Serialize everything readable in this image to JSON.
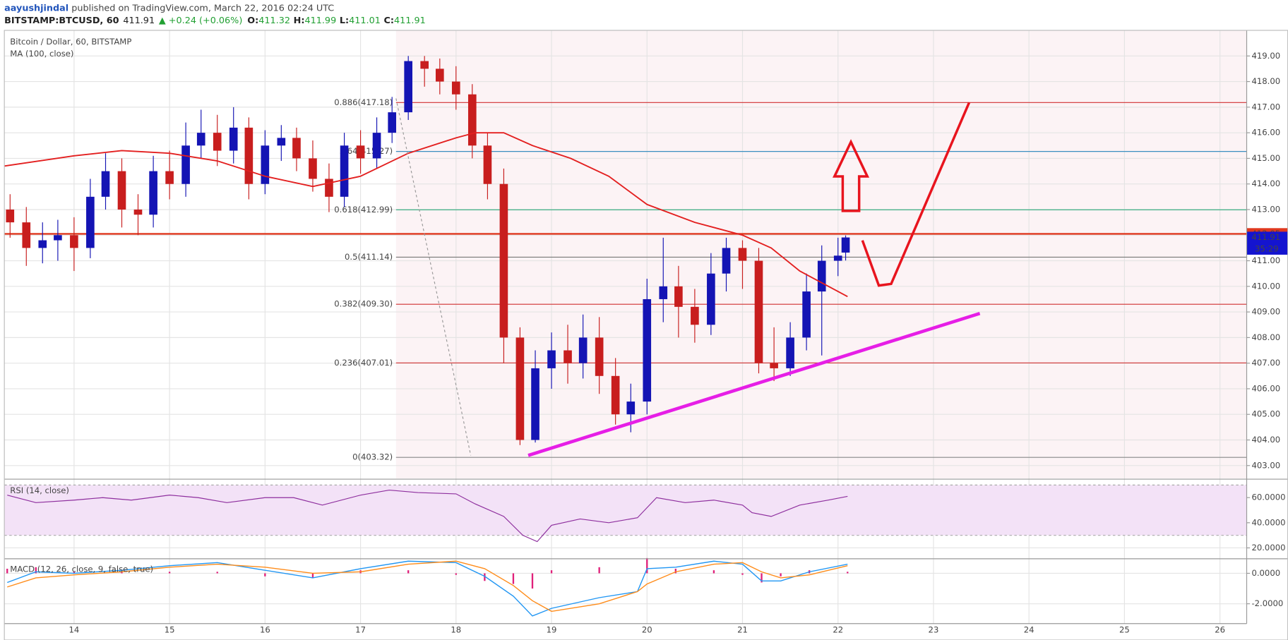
{
  "header": {
    "author": "aayushjindal",
    "published": " published on TradingView.com, March 22, 2016 02:24 UTC",
    "symbol": "BITSTAMP:BTCUSD, 60",
    "last": "411.91",
    "change": "▲ +0.24 (+0.06%)",
    "ohlc": [
      {
        "label": "O:",
        "value": "411.32"
      },
      {
        "label": "H:",
        "value": "411.99"
      },
      {
        "label": "L:",
        "value": "411.01"
      },
      {
        "label": "C:",
        "value": "411.91"
      }
    ]
  },
  "chart_data": [
    {
      "type": "candlestick",
      "title": "Bitcoin / Dollar, 60, BITSTAMP",
      "x": [
        13.33,
        13.5,
        13.67,
        13.83,
        14,
        14.17,
        14.33,
        14.5,
        14.67,
        14.83,
        15,
        15.17,
        15.33,
        15.5,
        15.67,
        15.83,
        16,
        16.17,
        16.33,
        16.5,
        16.67,
        16.83,
        17,
        17.17,
        17.33,
        17.5,
        17.67,
        17.83,
        18,
        18.17,
        18.33,
        18.5,
        18.67,
        18.83,
        19,
        19.17,
        19.33,
        19.5,
        19.67,
        19.83,
        20,
        20.17,
        20.33,
        20.5,
        20.67,
        20.83,
        21,
        21.17,
        21.33,
        21.5,
        21.67,
        21.83,
        22,
        22.08
      ],
      "open": [
        413.0,
        412.5,
        411.5,
        411.8,
        412.0,
        411.5,
        413.5,
        414.5,
        413.0,
        412.8,
        414.5,
        414.0,
        415.5,
        416.0,
        415.3,
        416.2,
        414.0,
        415.5,
        415.8,
        415.0,
        414.2,
        413.5,
        415.5,
        415.0,
        416.0,
        416.8,
        418.8,
        418.5,
        418.0,
        417.5,
        415.5,
        414.0,
        408.0,
        404.0,
        406.8,
        407.5,
        407.0,
        408.0,
        406.5,
        405.0,
        405.5,
        409.5,
        410.0,
        409.2,
        408.5,
        410.5,
        411.5,
        411.0,
        407.0,
        406.8,
        408.0,
        409.8,
        411.0,
        411.32
      ],
      "high": [
        413.6,
        413.1,
        412.5,
        412.6,
        412.7,
        414.2,
        415.2,
        415.0,
        413.6,
        415.1,
        415.3,
        416.4,
        416.9,
        416.7,
        417.0,
        416.6,
        416.1,
        416.3,
        416.2,
        415.7,
        414.8,
        416.0,
        416.1,
        416.6,
        417.4,
        419.0,
        419.0,
        418.9,
        418.6,
        417.9,
        416.0,
        414.6,
        408.4,
        407.5,
        408.2,
        408.5,
        408.9,
        408.8,
        407.2,
        406.2,
        410.3,
        411.9,
        410.8,
        409.9,
        411.3,
        411.9,
        411.8,
        411.5,
        408.4,
        408.6,
        410.5,
        411.6,
        411.9,
        411.99
      ],
      "low": [
        411.9,
        410.8,
        410.9,
        411.0,
        410.6,
        411.1,
        413.0,
        412.3,
        412.0,
        412.3,
        413.4,
        413.5,
        415.0,
        414.7,
        414.8,
        413.4,
        413.6,
        414.9,
        414.5,
        413.7,
        412.9,
        413.1,
        414.4,
        414.6,
        415.6,
        416.5,
        417.8,
        417.5,
        416.9,
        415.0,
        413.4,
        407.0,
        403.8,
        403.9,
        406.0,
        406.2,
        406.4,
        405.8,
        404.6,
        404.3,
        405.0,
        408.6,
        408.0,
        407.8,
        408.1,
        409.8,
        409.9,
        406.6,
        406.3,
        406.5,
        407.5,
        407.3,
        410.4,
        411.01
      ],
      "close": [
        412.5,
        411.5,
        411.8,
        412.0,
        411.5,
        413.5,
        414.5,
        413.0,
        412.8,
        414.5,
        414.0,
        415.5,
        416.0,
        415.3,
        416.2,
        414.0,
        415.5,
        415.8,
        415.0,
        414.2,
        413.5,
        415.5,
        415.0,
        416.0,
        416.8,
        418.8,
        418.5,
        418.0,
        417.5,
        415.5,
        414.0,
        408.0,
        404.0,
        406.8,
        407.5,
        407.0,
        408.0,
        406.5,
        405.0,
        405.5,
        409.5,
        410.0,
        409.2,
        408.5,
        410.5,
        411.5,
        411.0,
        407.0,
        406.8,
        408.0,
        409.8,
        411.0,
        411.2,
        411.91
      ],
      "up_color": "#1414b4",
      "down_color": "#c81e1e",
      "overlay": {
        "name": "MA (100, close)",
        "color": "#e31f1f",
        "x": [
          13.27,
          14,
          14.5,
          15,
          15.5,
          16,
          16.5,
          17,
          17.5,
          18,
          18.2,
          18.5,
          18.8,
          19.2,
          19.6,
          20,
          20.5,
          21,
          21.3,
          21.6,
          22,
          22.1
        ],
        "values": [
          414.7,
          415.1,
          415.3,
          415.2,
          414.9,
          414.3,
          413.9,
          414.3,
          415.2,
          415.8,
          416.0,
          416.0,
          415.5,
          415.0,
          414.3,
          413.2,
          412.5,
          412.0,
          411.5,
          410.6,
          409.8,
          409.6
        ]
      },
      "fib_levels": [
        {
          "label": "0.886(417.18)",
          "value": 417.18,
          "color": "#d03030"
        },
        {
          "label": ".764(415.27)",
          "value": 415.27,
          "color": "#3a8fc0"
        },
        {
          "label": "0.618(412.99)",
          "value": 412.99,
          "color": "#2aa878"
        },
        {
          "label": "0.5(411.14)",
          "value": 411.14,
          "color": "#777777"
        },
        {
          "label": "0.382(409.30)",
          "value": 409.3,
          "color": "#d03030"
        },
        {
          "label": "0.236(407.01)",
          "value": 407.01,
          "color": "#d03030"
        },
        {
          "label": "0(403.32)",
          "value": 403.32,
          "color": "#888888"
        }
      ],
      "price_line": {
        "value": 412.05,
        "color": "#e0381e"
      },
      "last_price": {
        "value": 411.91,
        "timer": "35:29",
        "color": "#1414d0"
      },
      "xlim": [
        13.27,
        26.28
      ],
      "xticks": [
        14,
        15,
        16,
        17,
        18,
        19,
        20,
        21,
        22,
        23,
        24,
        25,
        26
      ],
      "ylim": [
        402.5,
        420
      ],
      "yticks": [
        {
          "value": 403,
          "label": "403.00"
        },
        {
          "value": 404,
          "label": "404.00"
        },
        {
          "value": 405,
          "label": "405.00"
        },
        {
          "value": 406,
          "label": "406.00"
        },
        {
          "value": 407,
          "label": "407.00"
        },
        {
          "value": 408,
          "label": "408.00"
        },
        {
          "value": 409,
          "label": "409.00"
        },
        {
          "value": 410,
          "label": "410.00"
        },
        {
          "value": 411,
          "label": "411.00"
        },
        {
          "value": 412,
          "label": "412.00"
        },
        {
          "value": 413,
          "label": "413.00"
        },
        {
          "value": 414,
          "label": "414.00"
        },
        {
          "value": 415,
          "label": "415.00"
        },
        {
          "value": 416,
          "label": "416.00"
        },
        {
          "value": 417,
          "label": "417.00"
        },
        {
          "value": 418,
          "label": "418.00"
        },
        {
          "value": 419,
          "label": "419.00"
        }
      ],
      "grid": true
    },
    {
      "type": "line",
      "title": "RSI (14, close)",
      "color": "#8e2f9e",
      "x": [
        13.3,
        13.6,
        14,
        14.3,
        14.6,
        15,
        15.3,
        15.6,
        16,
        16.3,
        16.6,
        17,
        17.3,
        17.6,
        18,
        18.2,
        18.5,
        18.7,
        18.85,
        19,
        19.3,
        19.6,
        19.9,
        20.1,
        20.4,
        20.7,
        21,
        21.1,
        21.3,
        21.6,
        21.9,
        22.1
      ],
      "values": [
        62,
        56,
        58,
        60,
        58,
        62,
        60,
        56,
        60,
        60,
        54,
        62,
        66,
        64,
        63,
        55,
        45,
        30,
        25,
        38,
        43,
        40,
        44,
        60,
        56,
        58,
        54,
        48,
        45,
        54,
        58,
        61
      ],
      "bands": [
        30,
        70
      ],
      "ylim": [
        12,
        74
      ],
      "yticks": [
        {
          "value": 20,
          "label": "20.0000"
        },
        {
          "value": 40,
          "label": "40.0000"
        },
        {
          "value": 60,
          "label": "60.0000"
        }
      ]
    },
    {
      "type": "macd",
      "title": "MACD (12, 26, close, 9, false, true)",
      "x": [
        13.3,
        13.6,
        14,
        14.5,
        15,
        15.5,
        16,
        16.5,
        17,
        17.5,
        18,
        18.3,
        18.6,
        18.8,
        19,
        19.5,
        19.9,
        20,
        20.3,
        20.7,
        21,
        21.2,
        21.4,
        21.7,
        22.1
      ],
      "macd": {
        "color": "#2196f3",
        "values": [
          -0.6,
          0.1,
          0,
          0.2,
          0.5,
          0.7,
          0.2,
          -0.3,
          0.3,
          0.8,
          0.7,
          -0.2,
          -1.5,
          -2.8,
          -2.3,
          -1.6,
          -1.2,
          0.3,
          0.4,
          0.8,
          0.6,
          -0.5,
          -0.5,
          0.1,
          0.6
        ]
      },
      "signal": {
        "color": "#ff8c1a",
        "values": [
          -0.9,
          -0.3,
          -0.1,
          0.1,
          0.4,
          0.6,
          0.4,
          0,
          0.1,
          0.6,
          0.8,
          0.3,
          -0.8,
          -1.8,
          -2.5,
          -2.0,
          -1.2,
          -0.7,
          0.1,
          0.6,
          0.7,
          0.1,
          -0.3,
          -0.1,
          0.5
        ]
      },
      "histogram": {
        "color": "#e0207a",
        "values": [
          0.3,
          0.4,
          0.1,
          0.1,
          0.1,
          0.1,
          -0.2,
          -0.3,
          0.2,
          0.2,
          -0.1,
          -0.5,
          -0.7,
          -1.0,
          0.2,
          0.4,
          0,
          1.0,
          0.3,
          0.2,
          -0.1,
          -0.6,
          -0.2,
          0.2,
          0.1
        ]
      },
      "ylim": [
        -3.3,
        0.9
      ],
      "yticks": [
        {
          "value": -2,
          "label": "-2.0000"
        },
        {
          "value": 0,
          "label": "0.0000"
        }
      ]
    }
  ]
}
